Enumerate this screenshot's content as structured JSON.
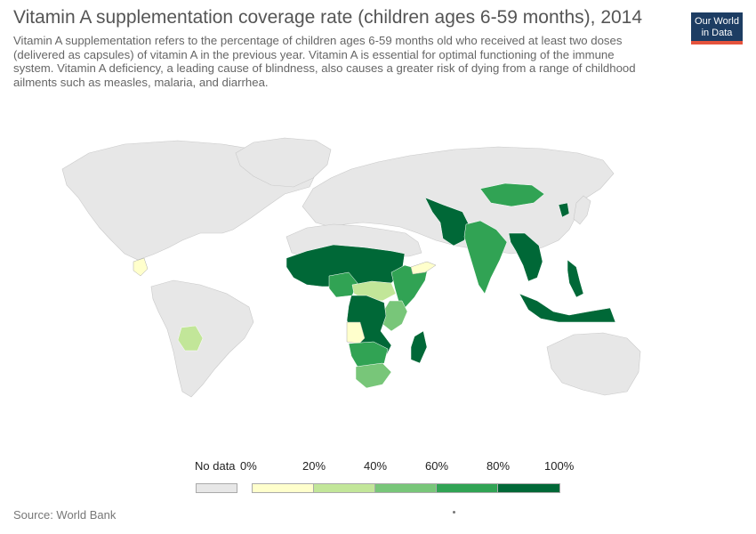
{
  "title": "Vitamin A supplementation coverage rate (children ages 6-59 months), 2014",
  "subtitle": "Vitamin A supplementation refers to the percentage of children ages 6-59 months old who received at least two doses (delivered as capsules) of vitamin A in the previous year. Vitamin A is essential for optimal functioning of the immune system. Vitamin A deficiency, a leading cause of blindness, also causes a greater risk of dying from a range of childhood ailments such as measles, malaria, and diarrhea.",
  "logo": {
    "line1": "Our World",
    "line2": "in Data"
  },
  "legend": {
    "no_data_label": "No data",
    "no_data_color": "#e7e7e7",
    "ticks": [
      "0%",
      "20%",
      "40%",
      "60%",
      "80%",
      "100%"
    ],
    "colors": [
      "#ffffcc",
      "#c2e699",
      "#78c679",
      "#31a354",
      "#006837"
    ]
  },
  "source": "Source: World Bank",
  "map": {
    "no_data_color": "#e7e7e7",
    "highlighted_regions": [
      {
        "region": "Sahel and West Africa",
        "bin": "80-100%"
      },
      {
        "region": "Central Africa",
        "bin": "80-100%"
      },
      {
        "region": "Madagascar",
        "bin": "80-100%"
      },
      {
        "region": "Afghanistan and Pakistan",
        "bin": "80-100%"
      },
      {
        "region": "Indonesia",
        "bin": "80-100%"
      },
      {
        "region": "Philippines",
        "bin": "80-100%"
      },
      {
        "region": "Mainland Southeast Asia",
        "bin": "80-100%"
      },
      {
        "region": "India",
        "bin": "60-80%"
      },
      {
        "region": "Mongolia",
        "bin": "60-80%"
      },
      {
        "region": "Ethiopia and Somalia",
        "bin": "60-80%"
      },
      {
        "region": "Southern Africa",
        "bin": "60-80%"
      },
      {
        "region": "Kenya and Tanzania",
        "bin": "40-60%"
      },
      {
        "region": "South Africa",
        "bin": "40-60%"
      },
      {
        "region": "Bolivia",
        "bin": "20-40%"
      },
      {
        "region": "South Sudan",
        "bin": "20-40%"
      },
      {
        "region": "Yemen",
        "bin": "0-20%"
      },
      {
        "region": "Angola",
        "bin": "0-20%"
      },
      {
        "region": "Central America",
        "bin": "0-20%"
      }
    ]
  }
}
